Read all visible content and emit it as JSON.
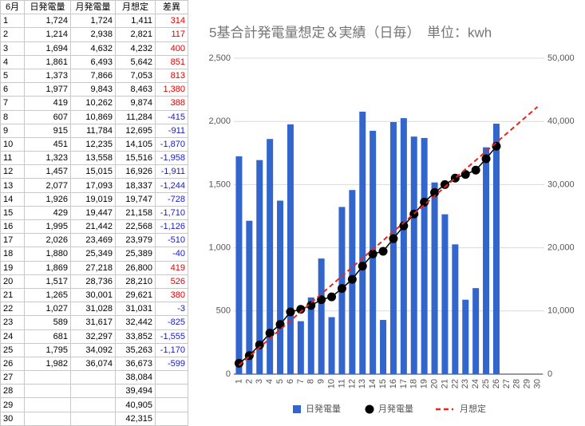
{
  "table": {
    "header": [
      "6月",
      "日発電量",
      "月発電量",
      "月想定",
      "差異"
    ],
    "rows": [
      {
        "day": "1",
        "daily": "1,724",
        "monthly": "1,724",
        "forecast": "1,411",
        "diff": "314"
      },
      {
        "day": "2",
        "daily": "1,214",
        "monthly": "2,938",
        "forecast": "2,821",
        "diff": "117"
      },
      {
        "day": "3",
        "daily": "1,694",
        "monthly": "4,632",
        "forecast": "4,232",
        "diff": "400"
      },
      {
        "day": "4",
        "daily": "1,861",
        "monthly": "6,493",
        "forecast": "5,642",
        "diff": "851"
      },
      {
        "day": "5",
        "daily": "1,373",
        "monthly": "7,866",
        "forecast": "7,053",
        "diff": "813"
      },
      {
        "day": "6",
        "daily": "1,977",
        "monthly": "9,843",
        "forecast": "8,463",
        "diff": "1,380"
      },
      {
        "day": "7",
        "daily": "419",
        "monthly": "10,262",
        "forecast": "9,874",
        "diff": "388"
      },
      {
        "day": "8",
        "daily": "607",
        "monthly": "10,869",
        "forecast": "11,284",
        "diff": "-415"
      },
      {
        "day": "9",
        "daily": "915",
        "monthly": "11,784",
        "forecast": "12,695",
        "diff": "-911"
      },
      {
        "day": "10",
        "daily": "451",
        "monthly": "12,235",
        "forecast": "14,105",
        "diff": "-1,870"
      },
      {
        "day": "11",
        "daily": "1,323",
        "monthly": "13,558",
        "forecast": "15,516",
        "diff": "-1,958"
      },
      {
        "day": "12",
        "daily": "1,457",
        "monthly": "15,015",
        "forecast": "16,926",
        "diff": "-1,911"
      },
      {
        "day": "13",
        "daily": "2,077",
        "monthly": "17,093",
        "forecast": "18,337",
        "diff": "-1,244"
      },
      {
        "day": "14",
        "daily": "1,926",
        "monthly": "19,019",
        "forecast": "19,747",
        "diff": "-728"
      },
      {
        "day": "15",
        "daily": "429",
        "monthly": "19,447",
        "forecast": "21,158",
        "diff": "-1,710"
      },
      {
        "day": "16",
        "daily": "1,995",
        "monthly": "21,442",
        "forecast": "22,568",
        "diff": "-1,126"
      },
      {
        "day": "17",
        "daily": "2,026",
        "monthly": "23,469",
        "forecast": "23,979",
        "diff": "-510"
      },
      {
        "day": "18",
        "daily": "1,880",
        "monthly": "25,349",
        "forecast": "25,389",
        "diff": "-40"
      },
      {
        "day": "19",
        "daily": "1,869",
        "monthly": "27,218",
        "forecast": "26,800",
        "diff": "419"
      },
      {
        "day": "20",
        "daily": "1,517",
        "monthly": "28,736",
        "forecast": "28,210",
        "diff": "526"
      },
      {
        "day": "21",
        "daily": "1,265",
        "monthly": "30,001",
        "forecast": "29,621",
        "diff": "380"
      },
      {
        "day": "22",
        "daily": "1,027",
        "monthly": "31,028",
        "forecast": "31,031",
        "diff": "-3"
      },
      {
        "day": "23",
        "daily": "589",
        "monthly": "31,617",
        "forecast": "32,442",
        "diff": "-825"
      },
      {
        "day": "24",
        "daily": "681",
        "monthly": "32,297",
        "forecast": "33,852",
        "diff": "-1,555"
      },
      {
        "day": "25",
        "daily": "1,795",
        "monthly": "34,092",
        "forecast": "35,263",
        "diff": "-1,170"
      },
      {
        "day": "26",
        "daily": "1,982",
        "monthly": "36,074",
        "forecast": "36,673",
        "diff": "-599"
      },
      {
        "day": "27",
        "forecast": "38,084"
      },
      {
        "day": "28",
        "forecast": "39,494"
      },
      {
        "day": "29",
        "forecast": "40,905"
      },
      {
        "day": "30",
        "forecast": "42,315"
      }
    ]
  },
  "chart_data": {
    "type": "combo",
    "title": "5基合計発電量想定＆実績（日毎）　単位：kwh",
    "categories": [
      "1",
      "2",
      "3",
      "4",
      "5",
      "6",
      "7",
      "8",
      "9",
      "10",
      "11",
      "12",
      "13",
      "14",
      "15",
      "16",
      "17",
      "18",
      "19",
      "20",
      "21",
      "22",
      "23",
      "24",
      "25",
      "26",
      "27",
      "28",
      "29",
      "30"
    ],
    "series": [
      {
        "name": "日発電量",
        "type": "bar",
        "color": "#3366cc",
        "axis": "y",
        "values": [
          1724,
          1214,
          1694,
          1861,
          1373,
          1977,
          419,
          607,
          915,
          451,
          1323,
          1457,
          2077,
          1926,
          429,
          1995,
          2026,
          1880,
          1869,
          1517,
          1265,
          1027,
          589,
          681,
          1795,
          1982,
          null,
          null,
          null,
          null
        ]
      },
      {
        "name": "月発電量",
        "type": "line",
        "color": "#000000",
        "axis": "y2",
        "markers": true,
        "values": [
          1724,
          2938,
          4632,
          6493,
          7866,
          9843,
          10262,
          10869,
          11784,
          12235,
          13558,
          15015,
          17093,
          19019,
          19447,
          21442,
          23469,
          25349,
          27218,
          28736,
          30001,
          31028,
          31617,
          32297,
          34092,
          36074,
          null,
          null,
          null,
          null
        ]
      },
      {
        "name": "月想定",
        "type": "line",
        "color": "#e8251e",
        "axis": "y2",
        "dashed": true,
        "values": [
          1411,
          2821,
          4232,
          5642,
          7053,
          8463,
          9874,
          11284,
          12695,
          14105,
          15516,
          16926,
          18337,
          19747,
          21158,
          22568,
          23979,
          25389,
          26800,
          28210,
          29621,
          31031,
          32442,
          33852,
          35263,
          36673,
          38084,
          39494,
          40905,
          42315
        ]
      }
    ],
    "ylim": [
      0,
      2500
    ],
    "yticks": [
      0,
      500,
      {
        "value": 1000,
        "label": "1,000"
      },
      {
        "value": 1500,
        "label": "1,500"
      },
      {
        "value": 2000,
        "label": "2,000"
      },
      {
        "value": 2500,
        "label": "2,500"
      }
    ],
    "y2lim": [
      0,
      50000
    ],
    "y2ticks": [
      0,
      {
        "value": 10000,
        "label": "10,000"
      },
      {
        "value": 20000,
        "label": "20,000"
      },
      {
        "value": 30000,
        "label": "30,000"
      },
      {
        "value": 40000,
        "label": "40,000"
      },
      {
        "value": 50000,
        "label": "50,000"
      }
    ],
    "grid": true,
    "legend": "bottom"
  }
}
